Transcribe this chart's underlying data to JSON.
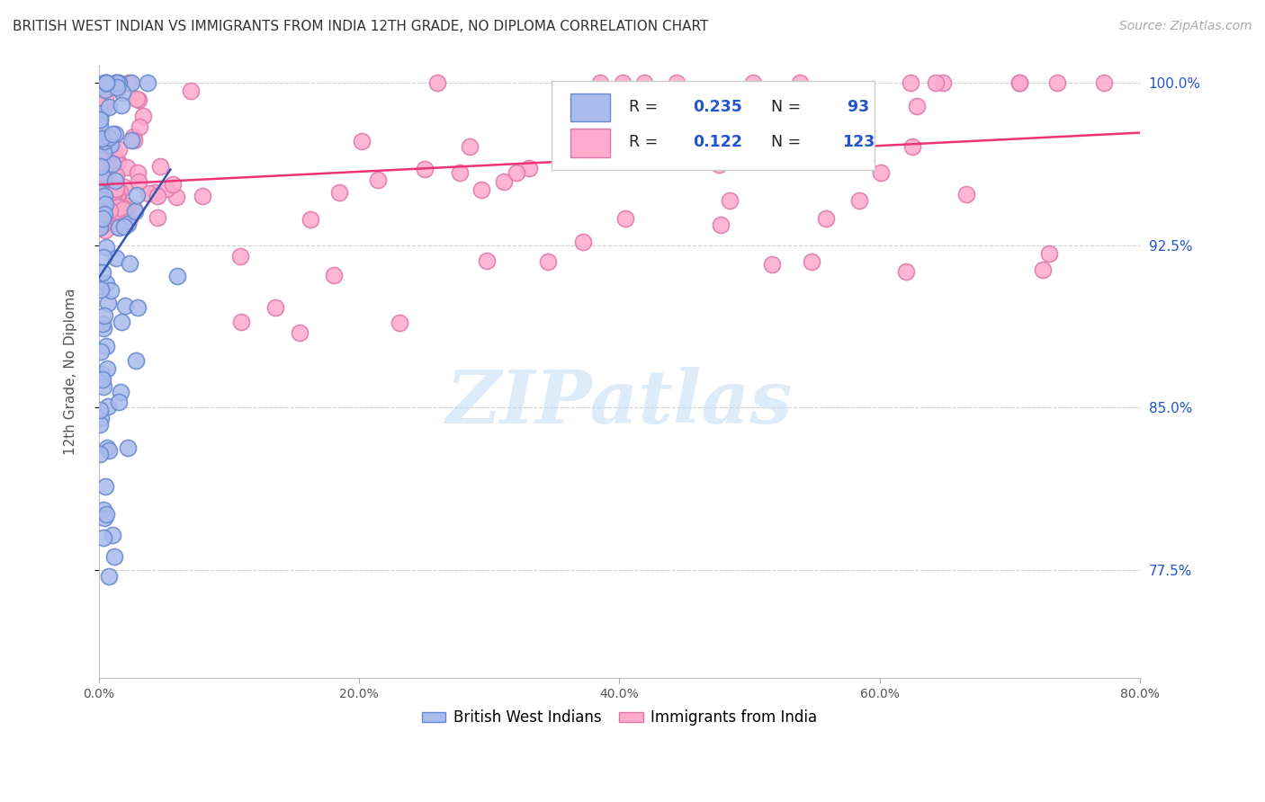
{
  "title": "BRITISH WEST INDIAN VS IMMIGRANTS FROM INDIA 12TH GRADE, NO DIPLOMA CORRELATION CHART",
  "source": "Source: ZipAtlas.com",
  "ylabel": "12th Grade, No Diploma",
  "xmin": 0.0,
  "xmax": 0.8,
  "ymin": 0.725,
  "ymax": 1.008,
  "ytick_vals": [
    0.775,
    0.85,
    0.925,
    1.0
  ],
  "ytick_labels": [
    "77.5%",
    "85.0%",
    "92.5%",
    "100.0%"
  ],
  "xtick_vals": [
    0.0,
    0.2,
    0.4,
    0.6,
    0.8
  ],
  "xtick_labels": [
    "0.0%",
    "20.0%",
    "40.0%",
    "60.0%",
    "80.0%"
  ],
  "grid_color": "#d0d0d0",
  "blue_face_color": "#aabbee",
  "blue_edge_color": "#6688cc",
  "pink_face_color": "#ffaacc",
  "pink_edge_color": "#dd77aa",
  "blue_line_color": "#3355aa",
  "pink_line_color": "#ee3377",
  "R_blue": 0.235,
  "N_blue": 93,
  "R_pink": 0.122,
  "N_pink": 123,
  "watermark": "ZIPatlas",
  "legend1": "British West Indians",
  "legend2": "Immigrants from India",
  "title_fontsize": 11,
  "source_fontsize": 10,
  "ylabel_fontsize": 11,
  "tick_color_blue": "#2255cc",
  "legend_R_color": "#2255cc",
  "legend_N_color": "#2255cc"
}
